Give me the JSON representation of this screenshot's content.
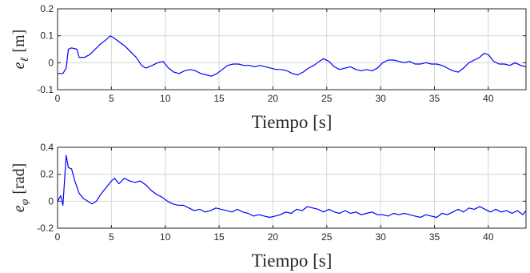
{
  "chart_data": [
    {
      "type": "line",
      "ylabel": "e_ℓ [m]",
      "ylabel_main": "e",
      "ylabel_sub": "ℓ",
      "ylabel_unit": "[m]",
      "xlabel": "Tiempo [s]",
      "xlim": [
        0,
        43.5
      ],
      "ylim": [
        -0.1,
        0.2
      ],
      "xticks": [
        0,
        5,
        10,
        15,
        20,
        25,
        30,
        35,
        40
      ],
      "yticks": [
        -0.1,
        0,
        0.1,
        0.2
      ],
      "ytick_labels": [
        "-0.1",
        "0",
        "0.1",
        "0.2"
      ],
      "grid": true,
      "color": "#0000ff",
      "x": [
        0,
        0.5,
        0.8,
        1.0,
        1.3,
        1.8,
        2.0,
        2.5,
        3.0,
        3.5,
        4.0,
        4.5,
        4.9,
        5.3,
        5.8,
        6.3,
        6.8,
        7.3,
        7.8,
        8.2,
        8.8,
        9.3,
        9.8,
        10.3,
        10.8,
        11.3,
        11.8,
        12.3,
        12.8,
        13.3,
        13.8,
        14.3,
        14.8,
        15.3,
        15.8,
        16.3,
        16.8,
        17.3,
        17.8,
        18.3,
        18.8,
        19.3,
        19.8,
        20.3,
        20.8,
        21.3,
        21.8,
        22.3,
        22.8,
        23.3,
        23.8,
        24.3,
        24.7,
        25.2,
        25.7,
        26.2,
        26.7,
        27.2,
        27.7,
        28.2,
        28.7,
        29.2,
        29.7,
        30.2,
        30.7,
        31.2,
        31.7,
        32.2,
        32.7,
        33.2,
        33.7,
        34.2,
        34.7,
        35.2,
        35.7,
        36.2,
        36.7,
        37.2,
        37.7,
        38.2,
        38.7,
        39.2,
        39.6,
        40.0,
        40.5,
        41.0,
        41.5,
        42.0,
        42.5,
        43.0,
        43.5
      ],
      "y": [
        -0.04,
        -0.04,
        -0.02,
        0.05,
        0.055,
        0.05,
        0.02,
        0.02,
        0.03,
        0.05,
        0.07,
        0.085,
        0.1,
        0.09,
        0.075,
        0.06,
        0.04,
        0.02,
        -0.01,
        -0.02,
        -0.01,
        0.0,
        0.005,
        -0.02,
        -0.035,
        -0.04,
        -0.03,
        -0.025,
        -0.03,
        -0.04,
        -0.045,
        -0.05,
        -0.04,
        -0.025,
        -0.01,
        -0.005,
        -0.005,
        -0.01,
        -0.01,
        -0.015,
        -0.01,
        -0.015,
        -0.02,
        -0.025,
        -0.025,
        -0.03,
        -0.04,
        -0.045,
        -0.035,
        -0.02,
        -0.01,
        0.005,
        0.015,
        0.005,
        -0.015,
        -0.025,
        -0.02,
        -0.015,
        -0.025,
        -0.03,
        -0.025,
        -0.03,
        -0.02,
        0.0,
        0.01,
        0.01,
        0.005,
        0.0,
        0.005,
        -0.005,
        -0.005,
        0.0,
        -0.005,
        -0.005,
        -0.01,
        -0.02,
        -0.03,
        -0.035,
        -0.02,
        0.0,
        0.01,
        0.02,
        0.035,
        0.03,
        0.005,
        -0.005,
        -0.005,
        -0.01,
        0.0,
        -0.01,
        -0.015
      ]
    },
    {
      "type": "line",
      "ylabel": "e_φ [rad]",
      "ylabel_main": "e",
      "ylabel_sub": "φ",
      "ylabel_unit": "[rad]",
      "xlabel": "Tiempo [s]",
      "xlim": [
        0,
        43.5
      ],
      "ylim": [
        -0.2,
        0.4
      ],
      "xticks": [
        0,
        5,
        10,
        15,
        20,
        25,
        30,
        35,
        40
      ],
      "yticks": [
        -0.2,
        0,
        0.2,
        0.4
      ],
      "ytick_labels": [
        "-0.2",
        "0",
        "0.2",
        "0.4"
      ],
      "grid": true,
      "color": "#0000ff",
      "x": [
        0,
        0.3,
        0.5,
        0.8,
        1.0,
        1.3,
        1.6,
        2.0,
        2.4,
        2.8,
        3.2,
        3.6,
        4.0,
        4.5,
        5.0,
        5.3,
        5.7,
        6.2,
        6.7,
        7.2,
        7.7,
        8.2,
        8.7,
        9.2,
        9.7,
        10.2,
        10.7,
        11.2,
        11.7,
        12.2,
        12.7,
        13.2,
        13.7,
        14.2,
        14.7,
        15.2,
        15.7,
        16.2,
        16.7,
        17.2,
        17.7,
        18.2,
        18.7,
        19.2,
        19.7,
        20.2,
        20.7,
        21.2,
        21.7,
        22.2,
        22.7,
        23.2,
        23.7,
        24.2,
        24.7,
        25.2,
        25.7,
        26.2,
        26.7,
        27.2,
        27.7,
        28.2,
        28.7,
        29.2,
        29.7,
        30.2,
        30.7,
        31.2,
        31.7,
        32.2,
        32.7,
        33.2,
        33.7,
        34.2,
        34.7,
        35.2,
        35.7,
        36.2,
        36.7,
        37.2,
        37.7,
        38.2,
        38.7,
        39.2,
        39.7,
        40.2,
        40.7,
        41.2,
        41.7,
        42.2,
        42.7,
        43.2,
        43.5
      ],
      "y": [
        0.0,
        0.04,
        -0.03,
        0.34,
        0.25,
        0.24,
        0.15,
        0.06,
        0.02,
        0.0,
        -0.02,
        0.0,
        0.05,
        0.1,
        0.15,
        0.17,
        0.13,
        0.17,
        0.15,
        0.14,
        0.15,
        0.12,
        0.08,
        0.05,
        0.03,
        0.0,
        -0.02,
        -0.03,
        -0.03,
        -0.05,
        -0.07,
        -0.06,
        -0.08,
        -0.07,
        -0.05,
        -0.06,
        -0.07,
        -0.08,
        -0.06,
        -0.08,
        -0.09,
        -0.11,
        -0.1,
        -0.11,
        -0.12,
        -0.11,
        -0.1,
        -0.08,
        -0.09,
        -0.06,
        -0.07,
        -0.04,
        -0.05,
        -0.06,
        -0.08,
        -0.06,
        -0.08,
        -0.09,
        -0.07,
        -0.09,
        -0.08,
        -0.1,
        -0.09,
        -0.08,
        -0.1,
        -0.1,
        -0.11,
        -0.09,
        -0.1,
        -0.09,
        -0.1,
        -0.11,
        -0.12,
        -0.1,
        -0.11,
        -0.12,
        -0.09,
        -0.1,
        -0.08,
        -0.06,
        -0.08,
        -0.05,
        -0.06,
        -0.04,
        -0.06,
        -0.08,
        -0.06,
        -0.08,
        -0.07,
        -0.09,
        -0.07,
        -0.1,
        -0.07
      ]
    }
  ]
}
